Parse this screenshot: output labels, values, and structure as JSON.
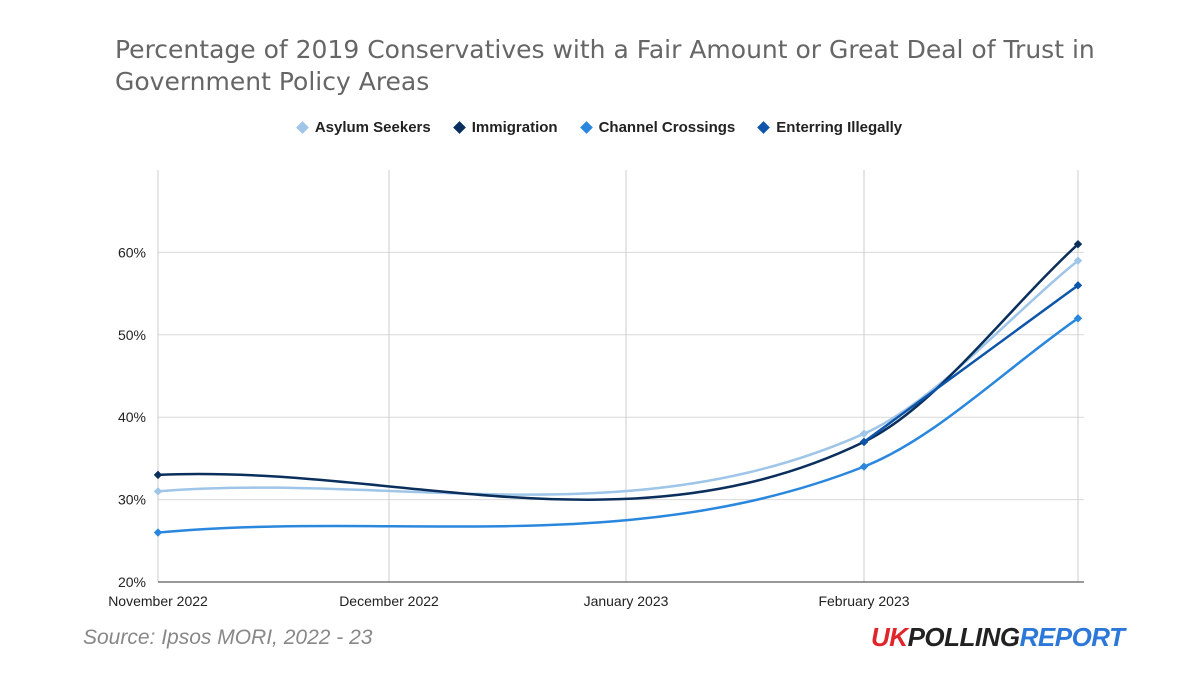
{
  "chart_data": {
    "type": "line",
    "title": "Percentage of 2019 Conservatives with a Fair Amount or Great Deal of Trust in Government Policy Areas",
    "xlabel": "",
    "ylabel": "",
    "x_ticks": [
      "November 2022",
      "December 2022",
      "January 2023",
      "February 2023"
    ],
    "y_ticks": [
      "20%",
      "30%",
      "40%",
      "50%",
      "60%"
    ],
    "ylim": [
      20,
      70
    ],
    "grid": true,
    "legend_position": "top-center",
    "series": [
      {
        "name": "Asylum Seekers",
        "color": "#9fc5e8",
        "points": [
          {
            "x": "November 2022",
            "y": 31
          },
          {
            "x": "February 2023",
            "y": 38
          },
          {
            "x": "March 2023",
            "y": 59
          }
        ]
      },
      {
        "name": "Immigration",
        "color": "#0b2f5c",
        "points": [
          {
            "x": "November 2022",
            "y": 33
          },
          {
            "x": "February 2023",
            "y": 37
          },
          {
            "x": "March 2023",
            "y": 61
          }
        ]
      },
      {
        "name": "Channel Crossings",
        "color": "#2a87de",
        "points": [
          {
            "x": "November 2022",
            "y": 26
          },
          {
            "x": "February 2023",
            "y": 34
          },
          {
            "x": "March 2023",
            "y": 52
          }
        ]
      },
      {
        "name": "Enterring Illegally",
        "color": "#0d55aa",
        "points": [
          {
            "x": "February 2023",
            "y": 37
          },
          {
            "x": "March 2023",
            "y": 56
          }
        ]
      }
    ]
  },
  "footer": {
    "source": "Source: Ipsos MORI, 2022 - 23",
    "logo_uk": "UK",
    "logo_polling": "POLLING",
    "logo_report": "REPORT"
  }
}
